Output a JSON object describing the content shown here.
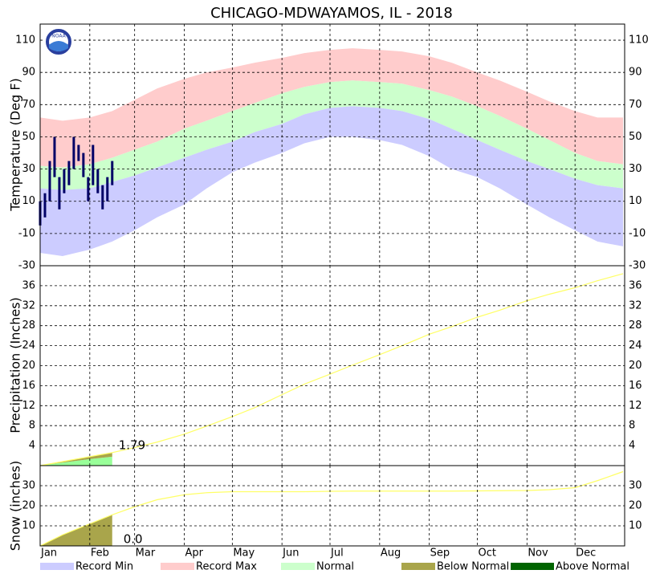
{
  "title": "CHICAGO-MDWAYAMOS, IL - 2018",
  "months": [
    "Jan",
    "Feb",
    "Mar",
    "Apr",
    "May",
    "Jun",
    "Jul",
    "Aug",
    "Sep",
    "Oct",
    "Nov",
    "Dec"
  ],
  "month_start_days": [
    1,
    32,
    60,
    91,
    121,
    152,
    182,
    213,
    244,
    274,
    305,
    335
  ],
  "legend": [
    {
      "name": "Record Min",
      "color": "#ccccff"
    },
    {
      "name": "Record Max",
      "color": "#ffcccc"
    },
    {
      "name": "Normal",
      "color": "#ccffcc"
    },
    {
      "name": "Below Normal",
      "color": "#a9a54b"
    },
    {
      "name": "Above Normal",
      "color": "#006400"
    }
  ],
  "chart_data": [
    {
      "type": "band",
      "ylabel": "Temperature (Deg F)",
      "xlim": [
        1,
        366
      ],
      "ylim": [
        -30,
        120
      ],
      "yticks": [
        -30,
        -10,
        10,
        30,
        50,
        70,
        90,
        110
      ],
      "grid": true,
      "x": [
        1,
        15,
        32,
        46,
        60,
        74,
        91,
        105,
        121,
        135,
        152,
        166,
        182,
        196,
        213,
        227,
        244,
        258,
        274,
        288,
        305,
        319,
        335,
        349,
        365
      ],
      "series": [
        {
          "name": "Record Max",
          "color": "#ffcccc",
          "values": [
            62,
            60,
            62,
            66,
            73,
            80,
            86,
            90,
            93,
            96,
            99,
            102,
            104,
            105,
            104,
            103,
            100,
            96,
            90,
            85,
            78,
            72,
            66,
            62,
            62
          ]
        },
        {
          "name": "Normal",
          "color": "#ccffcc",
          "high": [
            32,
            31,
            33,
            37,
            42,
            47,
            55,
            60,
            66,
            71,
            77,
            81,
            84,
            85,
            84,
            83,
            79,
            75,
            69,
            63,
            55,
            48,
            40,
            35,
            33
          ],
          "low": [
            18,
            17,
            18,
            22,
            26,
            31,
            37,
            42,
            47,
            53,
            58,
            64,
            68,
            69,
            68,
            66,
            61,
            55,
            48,
            42,
            35,
            30,
            24,
            20,
            18
          ]
        },
        {
          "name": "Record Min",
          "color": "#ccccff",
          "values": [
            -22,
            -24,
            -20,
            -15,
            -8,
            0,
            8,
            18,
            28,
            34,
            40,
            46,
            50,
            50,
            48,
            45,
            38,
            30,
            25,
            18,
            8,
            0,
            -8,
            -15,
            -18
          ]
        }
      ],
      "observed": {
        "color": "#000066",
        "x": [
          1,
          4,
          7,
          10,
          13,
          16,
          19,
          22,
          25,
          28,
          31,
          34,
          37,
          40,
          43,
          46
        ],
        "low": [
          -5,
          0,
          10,
          25,
          5,
          15,
          20,
          30,
          35,
          25,
          10,
          20,
          15,
          5,
          10,
          20
        ],
        "high": [
          10,
          15,
          35,
          50,
          25,
          30,
          35,
          50,
          45,
          40,
          25,
          45,
          30,
          20,
          25,
          35
        ]
      }
    },
    {
      "type": "line",
      "ylabel": "Precipitation (Inches)",
      "xlim": [
        1,
        366
      ],
      "ylim": [
        0,
        40
      ],
      "yticks": [
        4,
        8,
        12,
        16,
        20,
        24,
        28,
        32,
        36
      ],
      "grid": true,
      "x": [
        1,
        15,
        32,
        46,
        60,
        74,
        91,
        105,
        121,
        135,
        152,
        166,
        182,
        196,
        213,
        227,
        244,
        258,
        274,
        288,
        305,
        319,
        335,
        349,
        365
      ],
      "series": [
        {
          "color": "#ffff66",
          "values": [
            0,
            0.8,
            1.8,
            2.6,
            3.6,
            4.7,
            6.3,
            7.9,
            9.8,
            11.6,
            14.2,
            16.3,
            18.3,
            20.1,
            22.2,
            24.0,
            26.3,
            27.8,
            29.7,
            31.1,
            33.0,
            34.3,
            35.6,
            37.0,
            38.4
          ]
        }
      ],
      "observed": {
        "color": "#99ff99",
        "x": [
          1,
          15,
          32,
          46
        ],
        "values": [
          0,
          0.6,
          1.3,
          1.79
        ]
      },
      "annotation": 1.79
    },
    {
      "type": "line",
      "ylabel": "Snow (inches)",
      "xlim": [
        1,
        366
      ],
      "ylim": [
        0,
        40
      ],
      "yticks": [
        10,
        20,
        30
      ],
      "grid": true,
      "x": [
        1,
        15,
        32,
        46,
        60,
        74,
        91,
        105,
        121,
        135,
        152,
        166,
        182,
        196,
        213,
        227,
        244,
        258,
        274,
        288,
        305,
        319,
        335,
        349,
        365
      ],
      "series": [
        {
          "color": "#ffff66",
          "values": [
            0,
            5.5,
            11,
            15.5,
            19.5,
            23,
            25.5,
            26.5,
            27,
            27,
            27,
            27,
            27.2,
            27.3,
            27.3,
            27.3,
            27.3,
            27.3,
            27.4,
            27.5,
            27.6,
            28,
            29,
            32.5,
            37
          ]
        }
      ],
      "observed": {
        "color": "#99ff99",
        "x": [
          1,
          15,
          32,
          46
        ],
        "values": [
          0,
          0,
          0,
          0
        ]
      },
      "annotation": {
        "value": 0,
        "label": "0.0"
      }
    }
  ]
}
